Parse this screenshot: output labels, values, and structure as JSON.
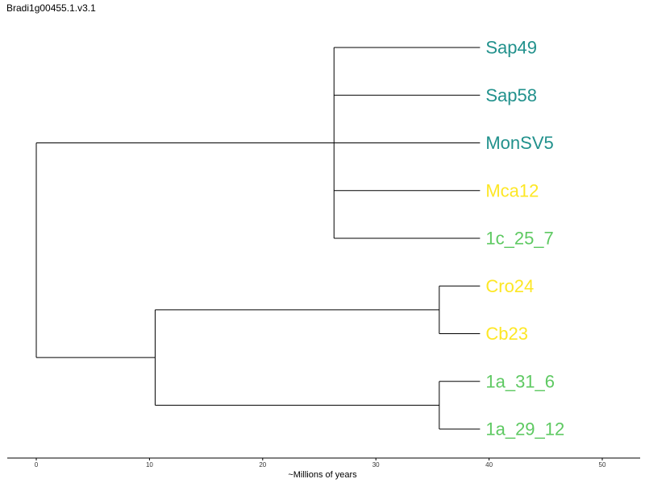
{
  "title": "Bradi1g00455.1.v3.1",
  "axis": {
    "label": "~Millions of years",
    "ticks": [
      0,
      10,
      20,
      30,
      40,
      50
    ]
  },
  "colors": {
    "teal": "#21918c",
    "yellow": "#fde725",
    "green": "#5ec962",
    "line": "#000000"
  },
  "tree": {
    "id": "root",
    "t": 0,
    "children": [
      {
        "id": "clade-a",
        "t": 26.3,
        "children": [
          {
            "leaf": "Sap49",
            "color": "teal"
          },
          {
            "leaf": "Sap58",
            "color": "teal"
          },
          {
            "leaf": "MonSV5",
            "color": "teal"
          },
          {
            "leaf": "Mca12",
            "color": "yellow"
          },
          {
            "leaf": "1c_25_7",
            "color": "green"
          }
        ]
      },
      {
        "id": "clade-b",
        "t": 10.5,
        "children": [
          {
            "id": "clade-b1",
            "t": 35.6,
            "children": [
              {
                "leaf": "Cro24",
                "color": "yellow"
              },
              {
                "leaf": "Cb23",
                "color": "yellow"
              }
            ]
          },
          {
            "id": "clade-b2",
            "t": 35.6,
            "children": [
              {
                "leaf": "1a_31_6",
                "color": "green"
              },
              {
                "leaf": "1a_29_12",
                "color": "green"
              }
            ]
          }
        ]
      }
    ]
  },
  "tip_time": 39.2
}
